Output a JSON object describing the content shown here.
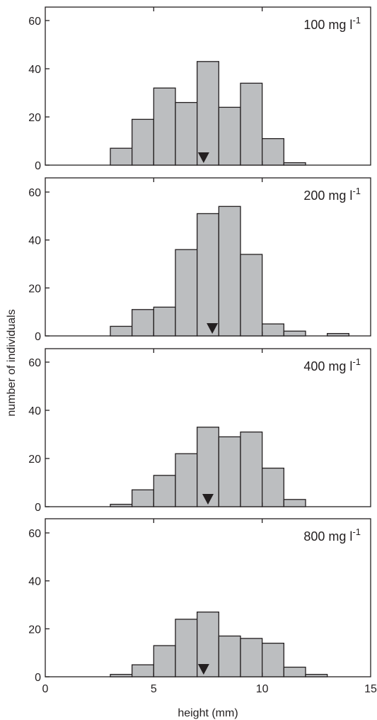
{
  "chart_data": [
    {
      "type": "bar",
      "title": "100 mg l",
      "title_superscript": "-1",
      "bin_edges": [
        3,
        4,
        5,
        6,
        7,
        8,
        9,
        10,
        11,
        12
      ],
      "values": [
        7,
        19,
        32,
        26,
        43,
        24,
        34,
        11,
        1
      ],
      "marker_x": 7.3,
      "xlim": [
        0,
        15
      ],
      "ylim": [
        0,
        65
      ],
      "yticks": [
        "0",
        "20",
        "40",
        "60"
      ]
    },
    {
      "type": "bar",
      "title": "200 mg l",
      "title_superscript": "-1",
      "bin_edges": [
        3,
        4,
        5,
        6,
        7,
        8,
        9,
        10,
        11,
        12,
        13,
        14
      ],
      "values": [
        4,
        11,
        12,
        36,
        51,
        54,
        34,
        5,
        2,
        0,
        1
      ],
      "marker_x": 7.7,
      "xlim": [
        0,
        15
      ],
      "ylim": [
        0,
        65
      ],
      "yticks": [
        "0",
        "20",
        "40",
        "60"
      ]
    },
    {
      "type": "bar",
      "title": "400 mg l",
      "title_superscript": "-1",
      "bin_edges": [
        3,
        4,
        5,
        6,
        7,
        8,
        9,
        10,
        11,
        12
      ],
      "values": [
        1,
        7,
        13,
        22,
        33,
        29,
        31,
        16,
        3
      ],
      "marker_x": 7.5,
      "xlim": [
        0,
        15
      ],
      "ylim": [
        0,
        65
      ],
      "yticks": [
        "0",
        "20",
        "40",
        "60"
      ]
    },
    {
      "type": "bar",
      "title": "800 mg l",
      "title_superscript": "-1",
      "bin_edges": [
        3,
        4,
        5,
        6,
        7,
        8,
        9,
        10,
        11,
        12,
        13
      ],
      "values": [
        1,
        5,
        13,
        24,
        27,
        17,
        16,
        14,
        4,
        1
      ],
      "marker_x": 7.3,
      "xlim": [
        0,
        15
      ],
      "ylim": [
        0,
        65
      ],
      "yticks": [
        "0",
        "20",
        "40",
        "60"
      ]
    }
  ],
  "shared": {
    "xlabel": "height (mm)",
    "ylabel": "number of individuals",
    "xticks": [
      "0",
      "5",
      "10",
      "15"
    ],
    "bar_color": "#bcbec0",
    "edge_color": "#231f20"
  }
}
